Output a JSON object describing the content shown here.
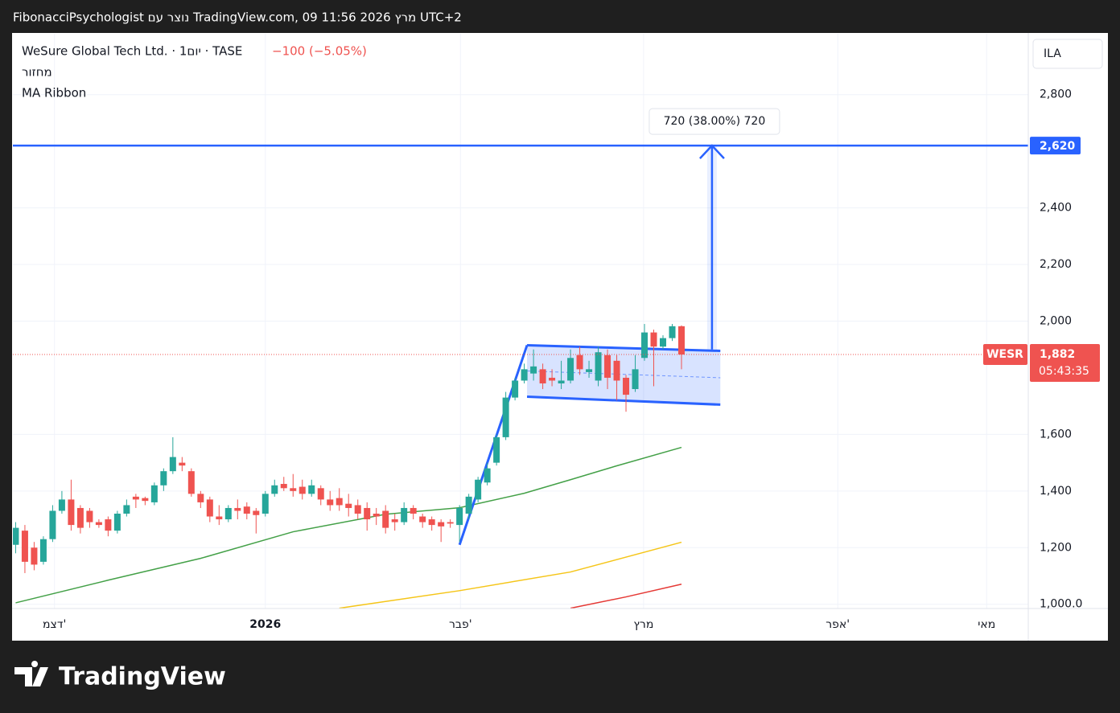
{
  "header": "FibonacciPsychologist נוצר עם TradingView.com, 09 מרץ 2026 11:56 UTC+2",
  "footer": {
    "brand": "TradingView"
  },
  "chart_data": {
    "type": "candlestick",
    "title": "WeSure Global Tech Ltd. · 1יום · TASE",
    "change_label": "−100 (−5.05%)",
    "indicators": [
      "מחזור",
      "MA Ribbon"
    ],
    "currency": "ILA",
    "ticker": "WESR",
    "countdown": "05:43:35",
    "last": {
      "value": 1882,
      "label": "1,882"
    },
    "up_color": "#26a69a",
    "down_color": "#ef5350",
    "grid": true,
    "x": [
      0,
      1,
      2,
      3,
      4,
      5,
      6,
      7,
      8,
      9,
      10,
      11,
      12,
      13,
      14,
      15,
      16,
      17,
      18,
      19,
      20,
      21,
      22,
      23,
      24,
      25,
      26,
      27,
      28,
      29,
      30,
      31,
      32,
      33,
      34,
      35,
      36,
      37,
      38,
      39,
      40,
      41,
      42,
      43,
      44,
      45,
      46,
      47,
      48,
      49,
      50,
      51,
      52,
      53,
      54,
      55,
      56,
      57,
      58,
      59,
      60,
      61,
      62,
      63,
      64,
      65,
      66,
      67,
      68,
      69,
      70,
      71,
      72
    ],
    "open": [
      1210,
      1260,
      1200,
      1150,
      1230,
      1330,
      1370,
      1340,
      1330,
      1290,
      1300,
      1260,
      1320,
      1380,
      1375,
      1360,
      1420,
      1470,
      1500,
      1470,
      1390,
      1370,
      1310,
      1300,
      1340,
      1345,
      1330,
      1320,
      1390,
      1425,
      1410,
      1415,
      1390,
      1410,
      1370,
      1375,
      1355,
      1350,
      1340,
      1320,
      1330,
      1300,
      1290,
      1340,
      1310,
      1300,
      1290,
      1290,
      1280,
      1320,
      1370,
      1430,
      1500,
      1590,
      1730,
      1790,
      1815,
      1830,
      1800,
      1780,
      1790,
      1880,
      1820,
      1790,
      1880,
      1860,
      1800,
      1760,
      1870,
      1960,
      1910,
      1940,
      1982
    ],
    "high": [
      1290,
      1280,
      1220,
      1240,
      1350,
      1400,
      1440,
      1350,
      1340,
      1300,
      1310,
      1330,
      1370,
      1390,
      1380,
      1430,
      1480,
      1590,
      1520,
      1480,
      1400,
      1380,
      1350,
      1350,
      1370,
      1360,
      1340,
      1400,
      1440,
      1450,
      1460,
      1440,
      1440,
      1420,
      1400,
      1410,
      1390,
      1370,
      1360,
      1340,
      1350,
      1320,
      1360,
      1350,
      1320,
      1310,
      1300,
      1300,
      1350,
      1390,
      1450,
      1500,
      1600,
      1750,
      1800,
      1850,
      1900,
      1850,
      1830,
      1860,
      1900,
      1910,
      1860,
      1910,
      1900,
      1880,
      1810,
      1880,
      1990,
      1970,
      1950,
      1990,
      1985
    ],
    "low": [
      1180,
      1110,
      1120,
      1140,
      1220,
      1320,
      1260,
      1250,
      1270,
      1270,
      1240,
      1250,
      1310,
      1340,
      1350,
      1350,
      1400,
      1460,
      1470,
      1380,
      1340,
      1290,
      1280,
      1290,
      1300,
      1300,
      1250,
      1310,
      1380,
      1400,
      1380,
      1370,
      1380,
      1350,
      1330,
      1330,
      1310,
      1300,
      1260,
      1280,
      1250,
      1260,
      1280,
      1300,
      1270,
      1260,
      1220,
      1270,
      1220,
      1300,
      1360,
      1420,
      1490,
      1580,
      1720,
      1780,
      1790,
      1760,
      1770,
      1760,
      1780,
      1810,
      1800,
      1770,
      1760,
      1720,
      1680,
      1750,
      1860,
      1770,
      1900,
      1930,
      1830
    ],
    "close": [
      1270,
      1150,
      1140,
      1230,
      1330,
      1370,
      1280,
      1270,
      1290,
      1280,
      1260,
      1320,
      1350,
      1370,
      1365,
      1420,
      1470,
      1520,
      1490,
      1390,
      1360,
      1310,
      1300,
      1340,
      1330,
      1320,
      1315,
      1390,
      1420,
      1410,
      1400,
      1390,
      1420,
      1370,
      1350,
      1350,
      1340,
      1320,
      1300,
      1310,
      1270,
      1290,
      1340,
      1320,
      1290,
      1280,
      1275,
      1285,
      1340,
      1380,
      1440,
      1480,
      1590,
      1730,
      1790,
      1830,
      1840,
      1780,
      1790,
      1790,
      1870,
      1830,
      1830,
      1890,
      1800,
      1790,
      1740,
      1830,
      1960,
      1910,
      1940,
      1982,
      1882
    ],
    "moving_averages": [
      {
        "color": "#43a047",
        "x": [
          0,
          10,
          20,
          30,
          40,
          48,
          55,
          60,
          65,
          72
        ],
        "values": [
          1005,
          1085,
          1162,
          1256,
          1318,
          1341,
          1392,
          1440,
          1489,
          1554
        ]
      },
      {
        "color": "#f5c518",
        "x": [
          35,
          48,
          60,
          72
        ],
        "values": [
          986,
          1048,
          1114,
          1219
        ]
      },
      {
        "color": "#e53935",
        "x": [
          60,
          66,
          72
        ],
        "values": [
          986,
          1026,
          1071
        ]
      }
    ],
    "level": {
      "value": 2620,
      "label": "2,620",
      "color": "#2962ff"
    },
    "flag": {
      "color": "#2962ff",
      "pole": {
        "x": [
          48,
          55.3
        ],
        "values": [
          1210,
          1915
        ]
      },
      "upper": {
        "x": [
          55.3,
          76.2
        ],
        "values": [
          1915,
          1895
        ]
      },
      "lower": {
        "x": [
          55.3,
          76.2
        ],
        "values": [
          1733,
          1705
        ]
      }
    },
    "measure": {
      "label": "720 (38.00%) 720",
      "x": 75.3,
      "from": 1900,
      "to": 2620
    },
    "xlim": [
      -0.3,
      109.5
    ],
    "xticks": [
      {
        "value": 4.2,
        "label": "דצמ'"
      },
      {
        "value": 27,
        "label": "2026"
      },
      {
        "value": 48.1,
        "label": "פבר'"
      },
      {
        "value": 67.9,
        "label": "מרץ"
      },
      {
        "value": 88.9,
        "label": "אפר'"
      },
      {
        "value": 105,
        "label": "מאי"
      }
    ],
    "ylim": [
      985,
      3015
    ],
    "yticks": [
      {
        "value": 1000,
        "label": "1,000.0"
      },
      {
        "value": 1200,
        "label": "1,200"
      },
      {
        "value": 1400,
        "label": "1,400"
      },
      {
        "value": 1600,
        "label": "1,600"
      },
      {
        "value": 2000,
        "label": "2,000"
      },
      {
        "value": 2200,
        "label": "2,200"
      },
      {
        "value": 2400,
        "label": "2,400"
      },
      {
        "value": 2800,
        "label": "2,800"
      }
    ]
  }
}
